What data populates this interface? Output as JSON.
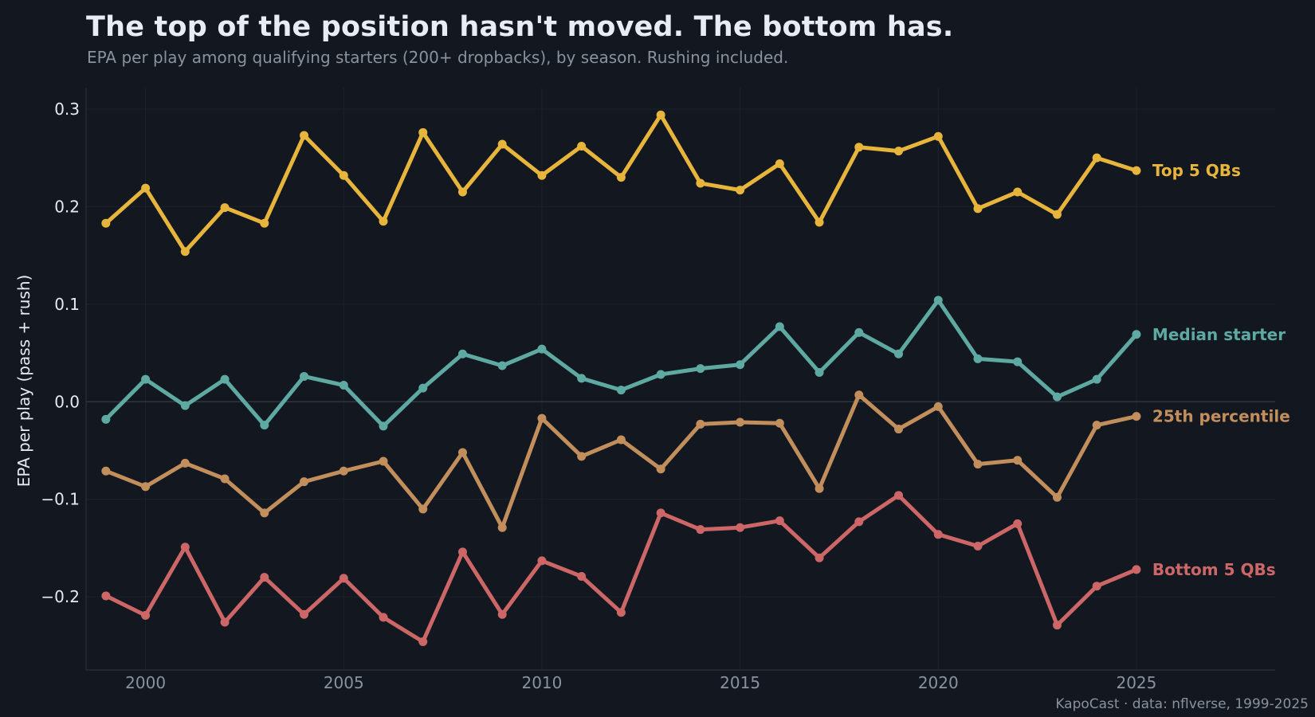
{
  "title": "The top of the position hasn't moved. The bottom has.",
  "subtitle": "EPA per play among qualifying starters (200+ dropbacks), by season. Rushing included.",
  "credit": "KapoCast · data: nflverse, 1999-2025",
  "chart_data": {
    "type": "line",
    "ylabel": "EPA per play (pass + rush)",
    "xlabel": "",
    "xlim": [
      1998.5,
      2028.5
    ],
    "ylim": [
      -0.275,
      0.322
    ],
    "x_ticks": [
      2000,
      2005,
      2010,
      2015,
      2020,
      2025
    ],
    "x_tick_labels": [
      "2000",
      "2005",
      "2010",
      "2015",
      "2020",
      "2025"
    ],
    "y_ticks": [
      -0.2,
      -0.1,
      0.0,
      0.1,
      0.2,
      0.3
    ],
    "y_tick_labels": [
      "−0.2",
      "−0.1",
      "0.0",
      "0.1",
      "0.2",
      "0.3"
    ],
    "grid": true,
    "legend": "direct labels at right end of each series",
    "x": [
      1999,
      2000,
      2001,
      2002,
      2003,
      2004,
      2005,
      2006,
      2007,
      2008,
      2009,
      2010,
      2011,
      2012,
      2013,
      2014,
      2015,
      2016,
      2017,
      2018,
      2019,
      2020,
      2021,
      2022,
      2023,
      2024,
      2025
    ],
    "series": [
      {
        "name": "Top 5 QBs",
        "color": "#e8b53c",
        "values": [
          0.183,
          0.219,
          0.154,
          0.199,
          0.183,
          0.273,
          0.232,
          0.185,
          0.276,
          0.215,
          0.264,
          0.232,
          0.262,
          0.23,
          0.294,
          0.224,
          0.217,
          0.244,
          0.184,
          0.261,
          0.257,
          0.272,
          0.198,
          0.215,
          0.192,
          0.25,
          0.237
        ]
      },
      {
        "name": "Median starter",
        "color": "#5eaaa3",
        "values": [
          -0.018,
          0.023,
          -0.004,
          0.023,
          -0.024,
          0.026,
          0.017,
          -0.025,
          0.014,
          0.049,
          0.037,
          0.054,
          0.024,
          0.012,
          0.028,
          0.034,
          0.038,
          0.077,
          0.03,
          0.071,
          0.049,
          0.104,
          0.044,
          0.041,
          0.005,
          0.023,
          0.069
        ]
      },
      {
        "name": "25th percentile",
        "color": "#c28e5c",
        "values": [
          -0.071,
          -0.087,
          -0.063,
          -0.079,
          -0.114,
          -0.082,
          -0.071,
          -0.061,
          -0.11,
          -0.052,
          -0.129,
          -0.017,
          -0.056,
          -0.039,
          -0.069,
          -0.023,
          -0.021,
          -0.022,
          -0.089,
          0.007,
          -0.028,
          -0.005,
          -0.064,
          -0.06,
          -0.098,
          -0.024,
          -0.015
        ]
      },
      {
        "name": "Bottom 5 QBs",
        "color": "#cc6667",
        "values": [
          -0.199,
          -0.219,
          -0.149,
          -0.226,
          -0.18,
          -0.218,
          -0.181,
          -0.221,
          -0.246,
          -0.154,
          -0.218,
          -0.163,
          -0.179,
          -0.216,
          -0.114,
          -0.131,
          -0.129,
          -0.122,
          -0.16,
          -0.123,
          -0.096,
          -0.136,
          -0.148,
          -0.125,
          -0.229,
          -0.189,
          -0.172
        ]
      }
    ]
  }
}
